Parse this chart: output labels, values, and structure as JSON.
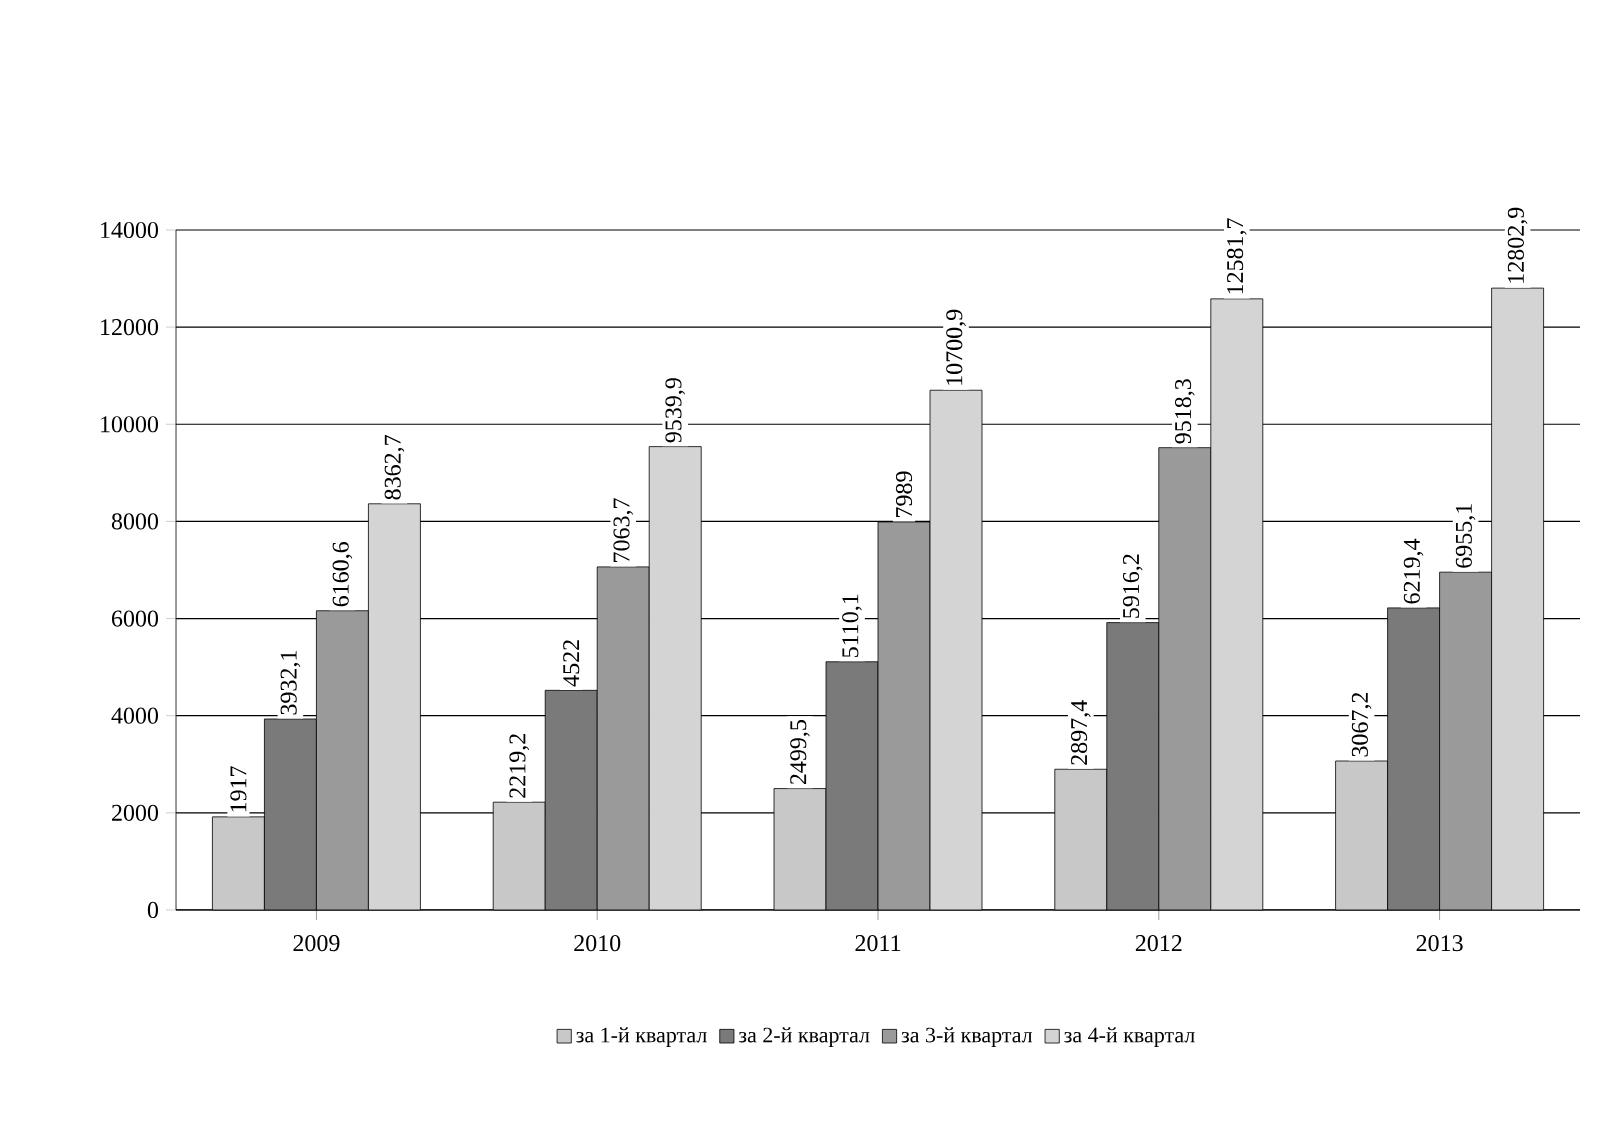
{
  "chart_data": {
    "type": "bar",
    "categories": [
      "2009",
      "2010",
      "2011",
      "2012",
      "2013"
    ],
    "series": [
      {
        "name": "за 1-й квартал",
        "color": "#c8c8c8",
        "values": [
          1917,
          2219.2,
          2499.5,
          2897.4,
          3067.2
        ],
        "value_labels": [
          "1917",
          "2219,2",
          "2499,5",
          "2897,4",
          "3067,2"
        ]
      },
      {
        "name": "за 2-й квартал",
        "color": "#7a7a7a",
        "values": [
          3932.1,
          4522,
          5110.1,
          5916.2,
          6219.4
        ],
        "value_labels": [
          "3932,1",
          "4522",
          "5110,1",
          "5916,2",
          "6219,4"
        ]
      },
      {
        "name": "за 3-й квартал",
        "color": "#9a9a9a",
        "values": [
          6160.6,
          7063.7,
          7989,
          9518.3,
          6955.1
        ],
        "value_labels": [
          "6160,6",
          "7063,7",
          "7989",
          "9518,3",
          "6955,1"
        ]
      },
      {
        "name": "за 4-й квартал",
        "color": "#d4d4d4",
        "values": [
          8362.7,
          9539.9,
          10700.9,
          12581.7,
          12802.9
        ],
        "value_labels": [
          "8362,7",
          "9539,9",
          "10700,9",
          "12581,7",
          "12802,9"
        ]
      }
    ],
    "ylim": [
      0,
      14000
    ],
    "yticks": [
      0,
      2000,
      4000,
      6000,
      8000,
      10000,
      12000,
      14000
    ],
    "grid": "y",
    "legend": "bottom"
  }
}
